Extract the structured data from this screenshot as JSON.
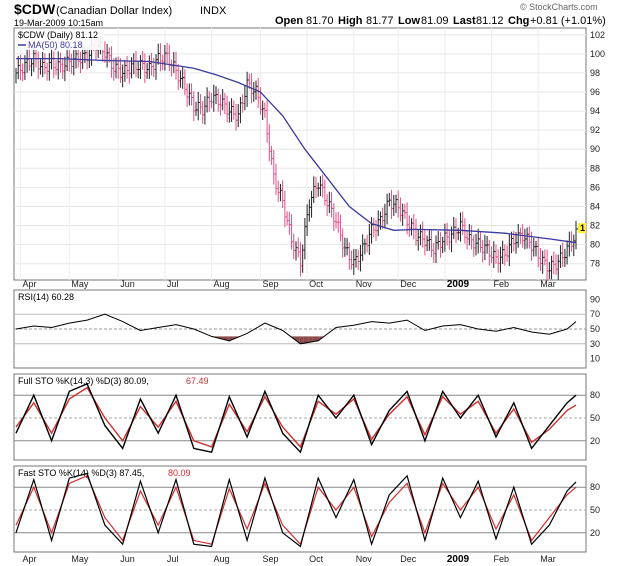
{
  "header": {
    "symbol": "$CDW",
    "name": "(Canadian Dollar Index)",
    "exchange": "INDX",
    "date": "19-Mar-2009 10:15am",
    "watermark": "© StockCharts.com",
    "open_label": "Open",
    "open": "81.70",
    "high_label": "High",
    "high": "81.77",
    "low_label": "Low",
    "low": "81.09",
    "last_label": "Last",
    "last": "81.12",
    "chg_label": "Chg",
    "chg": "+0.81 (+1.01%)"
  },
  "legend": {
    "price": "$CDW (Daily) 81.12",
    "ma": "MA(50) 80.18",
    "rsi": "RSI(14) 60.28",
    "full_sto_main": "Full STO %K(14,3) %D(3) 80.09,",
    "full_sto_d": "67.49",
    "fast_sto_main": "Fast STO %K(14) %D(3) 87.45,",
    "fast_sto_d": "80.09",
    "price_marker": "1"
  },
  "colors": {
    "price_up": "#222222",
    "price_down": "#e0508a",
    "ma": "#3a3aa0",
    "k_line": "#000000",
    "d_line": "#d03030",
    "rsi_fill": "#8b4a4a",
    "marker": "#ffee33"
  },
  "chart_data": [
    {
      "type": "line",
      "title": "$CDW (Canadian Dollar Index) INDX — Daily OHLC with MA(50)",
      "x_month_labels": [
        "Apr",
        "May",
        "Jun",
        "Jul",
        "Aug",
        "Sep",
        "Oct",
        "Nov",
        "Dec",
        "2009",
        "Feb",
        "Mar"
      ],
      "y_ticks": [
        78,
        80,
        82,
        84,
        86,
        88,
        90,
        92,
        94,
        96,
        98,
        100,
        102
      ],
      "ylim": [
        76.5,
        102.5
      ],
      "series": [
        {
          "name": "$CDW (Daily)",
          "x": [
            0,
            4,
            8,
            12,
            16,
            20,
            24,
            28,
            32,
            36,
            40,
            44,
            48,
            52,
            56,
            60,
            64,
            68,
            72,
            76,
            80,
            84,
            88,
            92,
            96,
            100,
            104,
            108,
            112,
            116,
            120,
            124,
            128,
            132,
            136,
            140,
            144,
            148,
            152,
            156,
            160,
            164,
            168,
            172,
            176,
            180,
            184,
            188,
            192,
            196,
            200,
            204,
            208,
            212,
            216,
            220,
            224,
            228,
            232,
            236,
            240,
            244,
            248,
            252
          ],
          "values": [
            98.0,
            98.8,
            99.5,
            98.5,
            99.0,
            98.6,
            99.2,
            99.5,
            99.8,
            101.0,
            100.2,
            98.5,
            98.0,
            98.7,
            98.8,
            98.4,
            99.5,
            99.7,
            98.2,
            96.5,
            94.5,
            94.2,
            95.5,
            95.0,
            94.0,
            93.5,
            96.8,
            96.0,
            93.5,
            87.0,
            84.5,
            80.5,
            78.2,
            84.5,
            86.5,
            84.5,
            82.5,
            79.5,
            78.0,
            79.5,
            81.5,
            82.5,
            84.5,
            84.0,
            82.5,
            81.0,
            80.5,
            79.5,
            80.5,
            81.0,
            82.0,
            80.5,
            80.0,
            79.5,
            78.5,
            79.0,
            80.5,
            81.0,
            80.0,
            78.5,
            77.5,
            78.2,
            79.5,
            81.1
          ]
        },
        {
          "name": "MA(50)",
          "x": [
            0,
            20,
            40,
            60,
            80,
            90,
            100,
            110,
            120,
            130,
            140,
            150,
            160,
            170,
            180,
            200,
            220,
            240,
            252
          ],
          "values": [
            99.5,
            99.5,
            99.3,
            99.2,
            98.5,
            97.8,
            97.0,
            96.0,
            93.5,
            90.0,
            87.0,
            84.0,
            82.2,
            81.5,
            81.6,
            81.5,
            81.2,
            80.6,
            80.2
          ]
        }
      ]
    },
    {
      "type": "line",
      "title": "RSI(14) 60.28",
      "y_ticks": [
        10,
        30,
        50,
        70,
        90
      ],
      "ylim": [
        0,
        100
      ],
      "series": [
        {
          "name": "RSI(14)",
          "x": [
            0,
            8,
            16,
            24,
            32,
            40,
            48,
            56,
            64,
            72,
            80,
            88,
            96,
            104,
            112,
            120,
            128,
            136,
            144,
            152,
            160,
            168,
            176,
            184,
            192,
            200,
            208,
            216,
            224,
            232,
            240,
            248,
            252
          ],
          "values": [
            50,
            54,
            52,
            58,
            62,
            70,
            60,
            48,
            52,
            56,
            50,
            40,
            34,
            44,
            58,
            48,
            30,
            34,
            52,
            55,
            60,
            58,
            62,
            48,
            54,
            56,
            50,
            47,
            52,
            46,
            43,
            50,
            60
          ]
        }
      ]
    },
    {
      "type": "line",
      "title": "Full STO %K(14,3) %D(3) 80.09, 67.49",
      "y_ticks": [
        20,
        50,
        80
      ],
      "ylim": [
        0,
        100
      ],
      "series": [
        {
          "name": "%K(14,3)",
          "x": [
            0,
            8,
            16,
            24,
            32,
            40,
            48,
            56,
            64,
            72,
            80,
            88,
            96,
            104,
            112,
            120,
            128,
            136,
            144,
            152,
            160,
            168,
            176,
            184,
            192,
            200,
            208,
            216,
            224,
            232,
            240,
            248,
            252
          ],
          "values": [
            30,
            80,
            20,
            85,
            95,
            40,
            10,
            75,
            30,
            80,
            10,
            5,
            78,
            25,
            85,
            30,
            5,
            80,
            50,
            80,
            15,
            60,
            85,
            20,
            85,
            50,
            80,
            25,
            70,
            10,
            40,
            70,
            80
          ]
        },
        {
          "name": "%D(3)",
          "x": [
            0,
            8,
            16,
            24,
            32,
            40,
            48,
            56,
            64,
            72,
            80,
            88,
            96,
            104,
            112,
            120,
            128,
            136,
            144,
            152,
            160,
            168,
            176,
            184,
            192,
            200,
            208,
            216,
            224,
            232,
            240,
            248,
            252
          ],
          "values": [
            38,
            70,
            30,
            75,
            90,
            50,
            20,
            65,
            38,
            72,
            20,
            12,
            68,
            32,
            78,
            38,
            12,
            72,
            55,
            75,
            22,
            55,
            78,
            28,
            78,
            55,
            72,
            30,
            62,
            18,
            35,
            60,
            67
          ]
        }
      ]
    },
    {
      "type": "line",
      "title": "Fast STO %K(14) %D(3) 87.45, 80.09",
      "y_ticks": [
        20,
        50,
        80
      ],
      "ylim": [
        0,
        100
      ],
      "series": [
        {
          "name": "%K(14)",
          "x": [
            0,
            8,
            16,
            24,
            32,
            40,
            48,
            56,
            64,
            72,
            80,
            88,
            96,
            104,
            112,
            120,
            128,
            136,
            144,
            152,
            160,
            168,
            176,
            184,
            192,
            200,
            208,
            216,
            224,
            232,
            240,
            248,
            252
          ],
          "values": [
            20,
            90,
            10,
            92,
            98,
            30,
            5,
            88,
            20,
            90,
            5,
            2,
            90,
            10,
            92,
            20,
            2,
            92,
            40,
            90,
            5,
            70,
            95,
            10,
            92,
            40,
            88,
            12,
            80,
            5,
            30,
            75,
            87
          ]
        },
        {
          "name": "%D(3)",
          "x": [
            0,
            8,
            16,
            24,
            32,
            40,
            48,
            56,
            64,
            72,
            80,
            88,
            96,
            104,
            112,
            120,
            128,
            136,
            144,
            152,
            160,
            168,
            176,
            184,
            192,
            200,
            208,
            216,
            224,
            232,
            240,
            248,
            252
          ],
          "values": [
            30,
            80,
            20,
            85,
            95,
            40,
            10,
            75,
            30,
            80,
            10,
            5,
            78,
            25,
            85,
            30,
            5,
            80,
            50,
            80,
            15,
            60,
            85,
            20,
            85,
            50,
            80,
            25,
            70,
            10,
            40,
            70,
            80
          ]
        }
      ]
    }
  ]
}
